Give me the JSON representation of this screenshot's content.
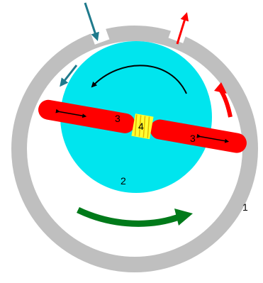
{
  "labels": {
    "housing": "1",
    "rotor": "2",
    "vane_left": "3",
    "vane_right": "3",
    "spring": "4"
  },
  "colors": {
    "housing": "#bfbfbf",
    "rotor": "#00e5ee",
    "vane": "#ff0000",
    "spring": "#ffff00",
    "inlet_arrow": "#1f7a8c",
    "outlet_arrow": "#ff0000",
    "rotation_arrow": "#000000",
    "flow_arrow": "#007a1a",
    "vane_arrow": "#000000"
  }
}
